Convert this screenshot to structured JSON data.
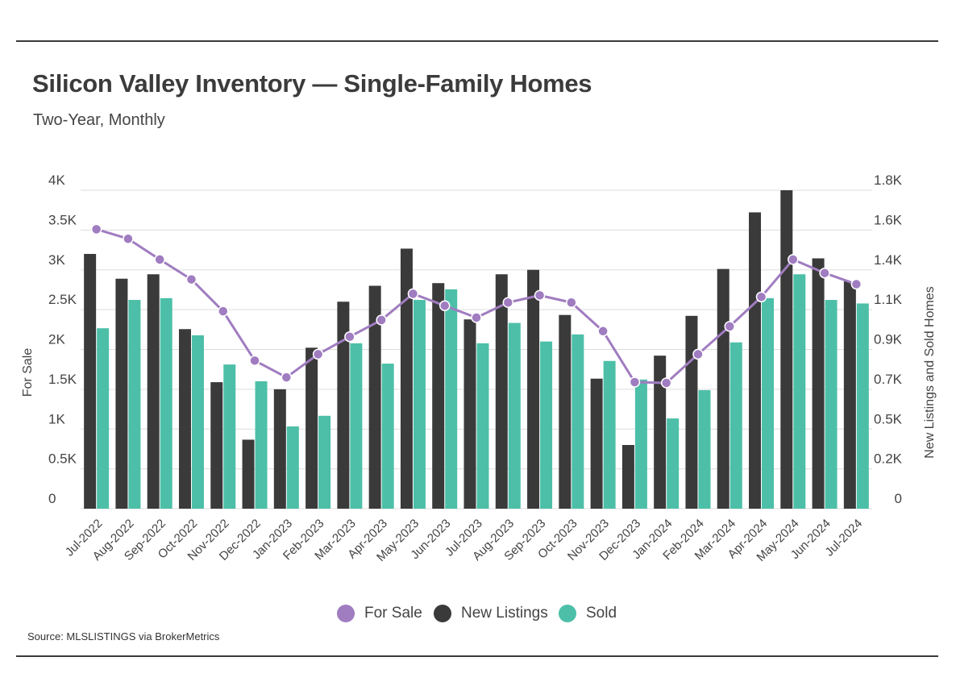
{
  "title": "Silicon Valley Inventory — Single-Family Homes",
  "subtitle": "Two-Year, Monthly",
  "source": "Source:  MLSLISTINGS via BrokerMetrics",
  "colors": {
    "for_sale": "#a07cc0",
    "new_listings": "#3a3a3a",
    "sold": "#4dbfa8",
    "grid": "#dddddd",
    "rule": "#3a3a3a"
  },
  "legend": [
    {
      "name": "For Sale",
      "color": "#a07cc0"
    },
    {
      "name": "New Listings",
      "color": "#3a3a3a"
    },
    {
      "name": "Sold",
      "color": "#4dbfa8"
    }
  ],
  "chart_data": {
    "type": "bar",
    "categories": [
      "Jul-2022",
      "Aug-2022",
      "Sep-2022",
      "Oct-2022",
      "Nov-2022",
      "Dec-2022",
      "Jan-2023",
      "Feb-2023",
      "Mar-2023",
      "Apr-2023",
      "May-2023",
      "Jun-2023",
      "Jul-2023",
      "Aug-2023",
      "Sep-2023",
      "Oct-2023",
      "Nov-2023",
      "Dec-2023",
      "Jan-2024",
      "Feb-2024",
      "Mar-2024",
      "Apr-2024",
      "May-2024",
      "Jun-2024",
      "Jul-2024"
    ],
    "y_left": {
      "label": "For Sale",
      "ylim": [
        0,
        4000
      ],
      "ticks": [
        "0",
        "0.5K",
        "1K",
        "1.5K",
        "2K",
        "2.5K",
        "3K",
        "3.5K",
        "4K"
      ]
    },
    "y_right": {
      "label": "New Listings and Sold Homes",
      "ylim": [
        0,
        1800
      ],
      "ticks": [
        "0",
        "0.2K",
        "0.5K",
        "0.7K",
        "0.9K",
        "1.1K",
        "1.4K",
        "1.6K",
        "1.8K"
      ]
    },
    "series": [
      {
        "name": "New Listings",
        "type": "bar",
        "axis": "right",
        "values": [
          1440,
          1300,
          1325,
          1015,
          715,
          390,
          675,
          910,
          1170,
          1260,
          1470,
          1275,
          1070,
          1325,
          1350,
          1095,
          735,
          360,
          865,
          1090,
          1355,
          1675,
          1800,
          1415,
          1285
        ]
      },
      {
        "name": "Sold",
        "type": "bar",
        "axis": "right",
        "values": [
          1020,
          1180,
          1190,
          980,
          815,
          720,
          465,
          525,
          935,
          820,
          1180,
          1240,
          935,
          1050,
          945,
          985,
          835,
          730,
          510,
          670,
          940,
          1190,
          1325,
          1180,
          1160
        ]
      },
      {
        "name": "For Sale",
        "type": "line",
        "axis": "left",
        "values": [
          3510,
          3390,
          3130,
          2880,
          2480,
          1860,
          1650,
          1940,
          2160,
          2370,
          2700,
          2550,
          2400,
          2590,
          2680,
          2590,
          2230,
          1590,
          1580,
          1940,
          2290,
          2660,
          3130,
          2960,
          2820
        ]
      }
    ],
    "grid": true,
    "legend_position": "bottom"
  }
}
